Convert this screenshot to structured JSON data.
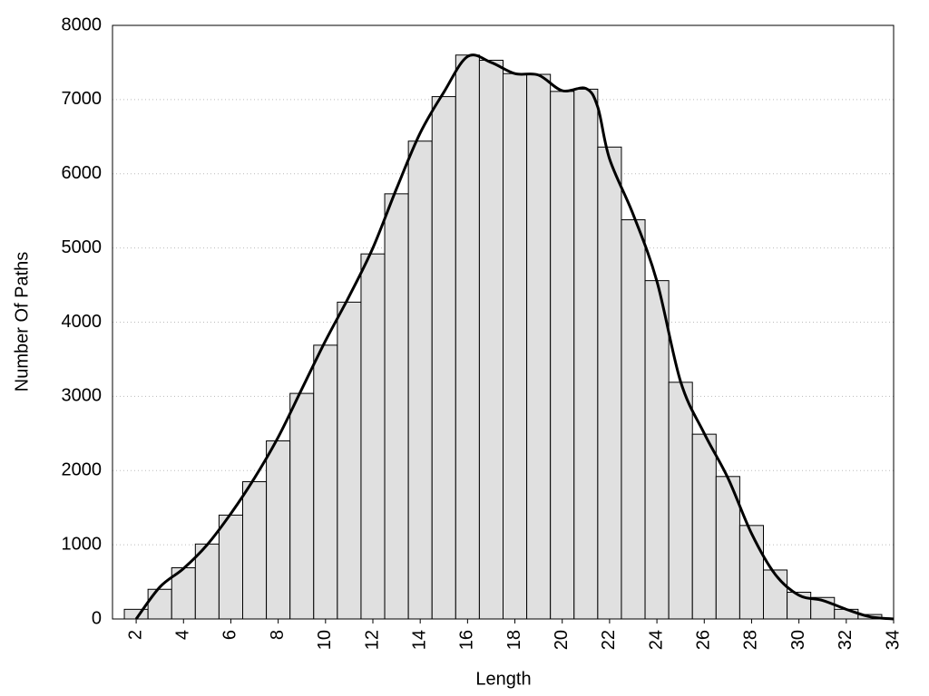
{
  "chart_data": {
    "type": "histogram",
    "x_label": "Length",
    "y_label": "Number Of Paths",
    "bins": [
      1.5,
      2.5,
      3.5,
      4.5,
      5.5,
      6.5,
      7.5,
      8.5,
      9.5,
      10.5,
      11.5,
      12.5,
      13.5,
      14.5,
      15.5,
      16.5,
      17.5,
      18.5,
      19.5,
      20.5,
      21.5,
      22.5,
      23.5,
      24.5,
      25.5,
      26.5,
      27.5,
      28.5,
      29.5,
      30.5,
      31.5,
      32.5,
      33.5
    ],
    "counts": [
      130,
      400,
      690,
      1010,
      1400,
      1850,
      2400,
      3040,
      3690,
      4270,
      4920,
      5730,
      6440,
      7040,
      7600,
      7530,
      7350,
      7340,
      7110,
      7140,
      6360,
      5380,
      4560,
      3190,
      2490,
      1920,
      1260,
      660,
      360,
      290,
      130,
      60
    ],
    "color": "#e0e0e0",
    "curve": {
      "color": "#000000",
      "x": [
        2,
        3,
        4,
        5,
        6,
        7,
        8,
        9,
        10,
        11,
        12,
        13,
        14,
        15,
        16,
        17,
        18,
        19,
        20,
        21,
        21.5,
        22,
        23,
        24,
        25,
        26,
        27,
        28,
        29,
        30,
        31,
        32,
        33,
        34
      ],
      "values": [
        0,
        430,
        680,
        1000,
        1420,
        1900,
        2450,
        3100,
        3750,
        4350,
        5000,
        5800,
        6550,
        7100,
        7580,
        7500,
        7350,
        7330,
        7120,
        7150,
        6900,
        6200,
        5450,
        4550,
        3200,
        2500,
        1900,
        1150,
        600,
        320,
        250,
        130,
        30,
        0
      ]
    },
    "xlim": [
      1,
      34
    ],
    "xticks": [
      2,
      4,
      6,
      8,
      10,
      12,
      14,
      16,
      18,
      20,
      22,
      24,
      26,
      28,
      30,
      32,
      34
    ],
    "ylim": [
      0,
      8000
    ],
    "yticks": [
      0,
      1000,
      2000,
      3000,
      4000,
      5000,
      6000,
      7000,
      8000
    ],
    "grid": true
  }
}
